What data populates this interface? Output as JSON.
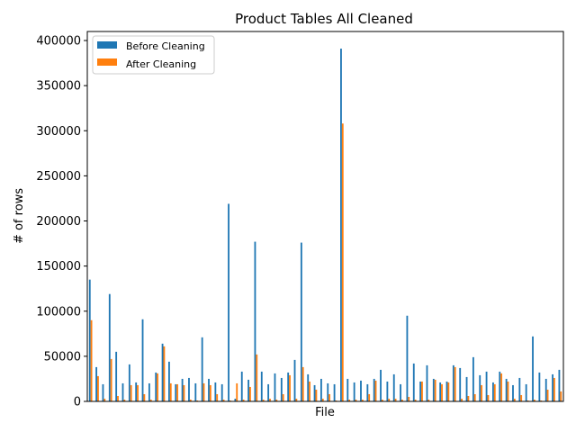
{
  "chart_data": {
    "type": "bar",
    "title": "Product Tables All Cleaned",
    "xlabel": "File",
    "ylabel": "# of rows",
    "ylim": [
      0,
      410000
    ],
    "yticks": [
      "0",
      "50000",
      "100000",
      "150000",
      "200000",
      "250000",
      "300000",
      "350000",
      "400000"
    ],
    "ytick_values": [
      0,
      50000,
      100000,
      150000,
      200000,
      250000,
      300000,
      350000,
      400000
    ],
    "grid": false,
    "legend_position": "top-left",
    "series": [
      {
        "name": "Before Cleaning",
        "color": "#1f77b4",
        "values": [
          135000,
          38000,
          19000,
          119000,
          55000,
          20000,
          41000,
          21000,
          91000,
          20000,
          32000,
          64000,
          44000,
          19000,
          25000,
          26000,
          20000,
          71000,
          25000,
          21000,
          19000,
          219000,
          3000,
          33000,
          24000,
          177000,
          33000,
          19000,
          31000,
          26000,
          32000,
          46000,
          176000,
          30000,
          18000,
          25000,
          20000,
          19000,
          391000,
          25000,
          21000,
          23000,
          19000,
          25000,
          35000,
          22000,
          30000,
          19000,
          95000,
          42000,
          22000,
          40000,
          25000,
          21000,
          22000,
          40000,
          37000,
          27000,
          49000,
          29000,
          33000,
          21000,
          33000,
          25000,
          18000,
          26000,
          19000,
          72000,
          32000,
          25000,
          30000,
          35000
        ],
        "colors_note": "blue"
      },
      {
        "name": "After Cleaning",
        "color": "#ff7f0e",
        "values": [
          90000,
          28000,
          3000,
          47000,
          6000,
          2000,
          18000,
          18000,
          8000,
          2000,
          31000,
          61000,
          20000,
          19000,
          18000,
          2000,
          1000,
          20000,
          18000,
          8000,
          2000,
          1000,
          20000,
          2000,
          16000,
          52000,
          2000,
          3000,
          2000,
          8000,
          29000,
          3000,
          38000,
          22000,
          13000,
          3000,
          8000,
          1000,
          308000,
          2000,
          2000,
          2000,
          8000,
          23000,
          2000,
          3000,
          3000,
          2000,
          5000,
          2000,
          22000,
          2000,
          24000,
          19000,
          21000,
          38000,
          3000,
          6000,
          8000,
          18000,
          7000,
          19000,
          31000,
          22000,
          3000,
          7000,
          1000,
          2000,
          1000,
          13000,
          26000,
          11000
        ]
      }
    ]
  }
}
